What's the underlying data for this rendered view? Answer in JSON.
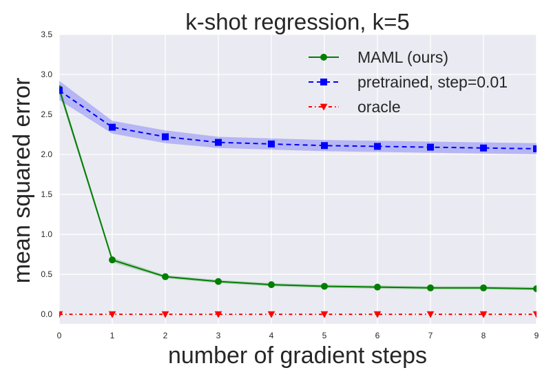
{
  "chart_data": {
    "type": "line",
    "title": "k-shot regression, k=5",
    "xlabel": "number of gradient steps",
    "ylabel": "mean squared error",
    "xlim": [
      0,
      9
    ],
    "ylim": [
      -0.12,
      3.5
    ],
    "x_ticks": [
      0,
      1,
      2,
      3,
      4,
      5,
      6,
      7,
      8,
      9
    ],
    "y_ticks": [
      0.0,
      0.5,
      1.0,
      1.5,
      2.0,
      2.5,
      3.0,
      3.5
    ],
    "y_tick_labels": [
      "0.0",
      "0.5",
      "1.0",
      "1.5",
      "2.0",
      "2.5",
      "3.0",
      "3.5"
    ],
    "grid": true,
    "legend_position": "top-right",
    "x": [
      0,
      1,
      2,
      3,
      4,
      5,
      6,
      7,
      8,
      9
    ],
    "series": [
      {
        "name": "MAML (ours)",
        "color": "#007f00",
        "marker": "circle",
        "linestyle": "solid",
        "values": [
          2.82,
          0.68,
          0.47,
          0.41,
          0.37,
          0.35,
          0.34,
          0.33,
          0.33,
          0.32
        ],
        "band": [
          0.05,
          0.03,
          0.02,
          0.02,
          0.02,
          0.02,
          0.02,
          0.02,
          0.02,
          0.02
        ]
      },
      {
        "name": "pretrained, step=0.01",
        "color": "#0000ff",
        "marker": "square",
        "linestyle": "dashed",
        "values": [
          2.8,
          2.34,
          2.22,
          2.15,
          2.13,
          2.11,
          2.1,
          2.09,
          2.08,
          2.07
        ],
        "band": [
          0.12,
          0.08,
          0.08,
          0.07,
          0.07,
          0.07,
          0.07,
          0.07,
          0.07,
          0.07
        ]
      },
      {
        "name": "oracle",
        "color": "#ff0000",
        "marker": "triangle-down",
        "linestyle": "dashdot",
        "values": [
          0,
          0,
          0,
          0,
          0,
          0,
          0,
          0,
          0,
          0
        ],
        "band": [
          0,
          0,
          0,
          0,
          0,
          0,
          0,
          0,
          0,
          0
        ]
      }
    ]
  },
  "style": {
    "plot_background": "#eaeaf2",
    "grid_color": "#ffffff",
    "text_color": "#262626"
  }
}
